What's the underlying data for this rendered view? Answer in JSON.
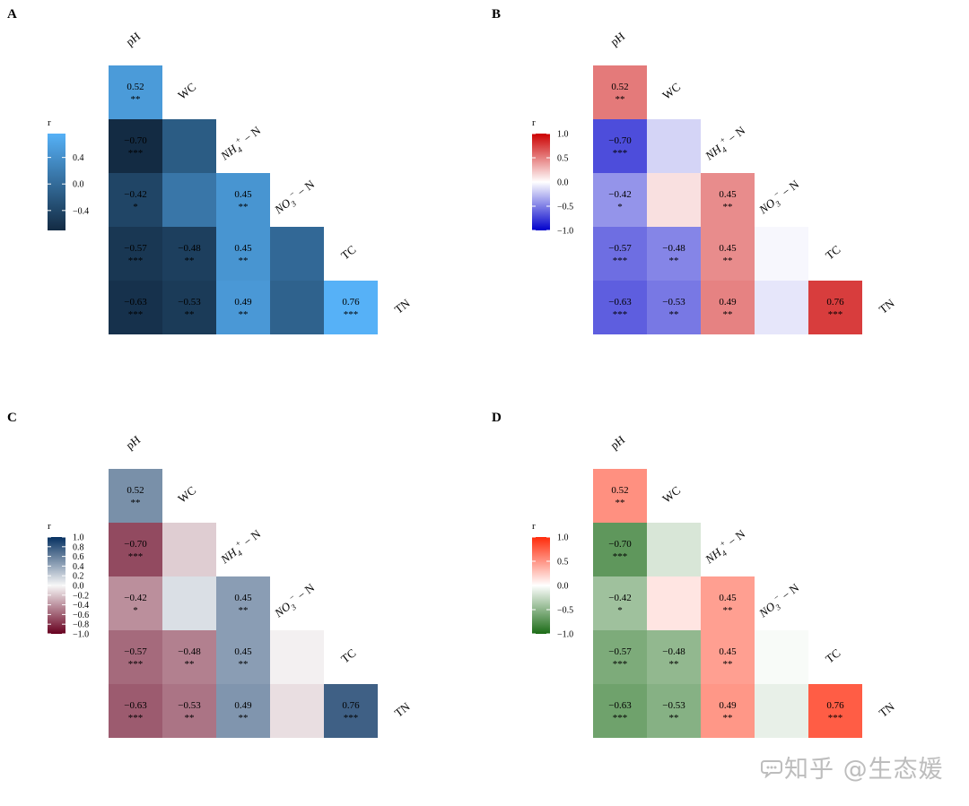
{
  "chart_data": [
    {
      "type": "heatmap",
      "panel": "A",
      "variables": [
        "pH",
        "WC",
        "NH4+-N",
        "NO3−-N",
        "TC",
        "TN"
      ],
      "cells": [
        {
          "row": "WC",
          "col": "pH",
          "r": 0.52,
          "sig": "**"
        },
        {
          "row": "NH4+-N",
          "col": "pH",
          "r": -0.7,
          "sig": "***"
        },
        {
          "row": "NH4+-N",
          "col": "WC",
          "r": -0.17,
          "sig": ""
        },
        {
          "row": "NO3−-N",
          "col": "pH",
          "r": -0.42,
          "sig": "*"
        },
        {
          "row": "NO3−-N",
          "col": "WC",
          "r": 0.12,
          "sig": ""
        },
        {
          "row": "NO3−-N",
          "col": "NH4+-N",
          "r": 0.45,
          "sig": "**"
        },
        {
          "row": "TC",
          "col": "pH",
          "r": -0.57,
          "sig": "***"
        },
        {
          "row": "TC",
          "col": "WC",
          "r": -0.48,
          "sig": "**"
        },
        {
          "row": "TC",
          "col": "NH4+-N",
          "r": 0.45,
          "sig": "**"
        },
        {
          "row": "TC",
          "col": "NO3−-N",
          "r": -0.03,
          "sig": ""
        },
        {
          "row": "TN",
          "col": "pH",
          "r": -0.63,
          "sig": "***"
        },
        {
          "row": "TN",
          "col": "WC",
          "r": -0.53,
          "sig": "**"
        },
        {
          "row": "TN",
          "col": "NH4+-N",
          "r": 0.49,
          "sig": "**"
        },
        {
          "row": "TN",
          "col": "NO3−-N",
          "r": -0.1,
          "sig": ""
        },
        {
          "row": "TN",
          "col": "TC",
          "r": 0.76,
          "sig": "***"
        }
      ],
      "legend": {
        "title": "r",
        "ticks": [
          0.4,
          0.0,
          -0.4
        ],
        "range": [
          -0.7,
          0.76
        ]
      },
      "colors": {
        "low": "#132b43",
        "high": "#56b1f7"
      }
    },
    {
      "type": "heatmap",
      "panel": "B",
      "variables": [
        "pH",
        "WC",
        "NH4+-N",
        "NO3−-N",
        "TC",
        "TN"
      ],
      "cells": [
        {
          "row": "WC",
          "col": "pH",
          "r": 0.52,
          "sig": "**"
        },
        {
          "row": "NH4+-N",
          "col": "pH",
          "r": -0.7,
          "sig": "***"
        },
        {
          "row": "NH4+-N",
          "col": "WC",
          "r": -0.17,
          "sig": ""
        },
        {
          "row": "NO3−-N",
          "col": "pH",
          "r": -0.42,
          "sig": "*"
        },
        {
          "row": "NO3−-N",
          "col": "WC",
          "r": 0.12,
          "sig": ""
        },
        {
          "row": "NO3−-N",
          "col": "NH4+-N",
          "r": 0.45,
          "sig": "**"
        },
        {
          "row": "TC",
          "col": "pH",
          "r": -0.57,
          "sig": "***"
        },
        {
          "row": "TC",
          "col": "WC",
          "r": -0.48,
          "sig": "**"
        },
        {
          "row": "TC",
          "col": "NH4+-N",
          "r": 0.45,
          "sig": "**"
        },
        {
          "row": "TC",
          "col": "NO3−-N",
          "r": -0.03,
          "sig": ""
        },
        {
          "row": "TN",
          "col": "pH",
          "r": -0.63,
          "sig": "***"
        },
        {
          "row": "TN",
          "col": "WC",
          "r": -0.53,
          "sig": "**"
        },
        {
          "row": "TN",
          "col": "NH4+-N",
          "r": 0.49,
          "sig": "**"
        },
        {
          "row": "TN",
          "col": "NO3−-N",
          "r": -0.1,
          "sig": ""
        },
        {
          "row": "TN",
          "col": "TC",
          "r": 0.76,
          "sig": "***"
        }
      ],
      "legend": {
        "title": "r",
        "ticks": [
          1.0,
          0.5,
          0.0,
          -0.5,
          -1.0
        ],
        "range": [
          -1,
          1
        ]
      },
      "colors": {
        "low": "#0000cc",
        "mid": "#ffffff",
        "high": "#cc0000"
      }
    },
    {
      "type": "heatmap",
      "panel": "C",
      "variables": [
        "pH",
        "WC",
        "NH4+-N",
        "NO3−-N",
        "TC",
        "TN"
      ],
      "cells": [
        {
          "row": "WC",
          "col": "pH",
          "r": 0.52,
          "sig": "**"
        },
        {
          "row": "NH4+-N",
          "col": "pH",
          "r": -0.7,
          "sig": "***"
        },
        {
          "row": "NH4+-N",
          "col": "WC",
          "r": -0.17,
          "sig": ""
        },
        {
          "row": "NO3−-N",
          "col": "pH",
          "r": -0.42,
          "sig": "*"
        },
        {
          "row": "NO3−-N",
          "col": "WC",
          "r": 0.12,
          "sig": ""
        },
        {
          "row": "NO3−-N",
          "col": "NH4+-N",
          "r": 0.45,
          "sig": "**"
        },
        {
          "row": "TC",
          "col": "pH",
          "r": -0.57,
          "sig": "***"
        },
        {
          "row": "TC",
          "col": "WC",
          "r": -0.48,
          "sig": "**"
        },
        {
          "row": "TC",
          "col": "NH4+-N",
          "r": 0.45,
          "sig": "**"
        },
        {
          "row": "TC",
          "col": "NO3−-N",
          "r": -0.03,
          "sig": ""
        },
        {
          "row": "TN",
          "col": "pH",
          "r": -0.63,
          "sig": "***"
        },
        {
          "row": "TN",
          "col": "WC",
          "r": -0.53,
          "sig": "**"
        },
        {
          "row": "TN",
          "col": "NH4+-N",
          "r": 0.49,
          "sig": "**"
        },
        {
          "row": "TN",
          "col": "NO3−-N",
          "r": -0.1,
          "sig": ""
        },
        {
          "row": "TN",
          "col": "TC",
          "r": 0.76,
          "sig": "***"
        }
      ],
      "legend": {
        "title": "r",
        "ticks": [
          1.0,
          0.8,
          0.6,
          0.4,
          0.2,
          0.0,
          -0.2,
          -0.4,
          -0.6,
          -0.8,
          -1.0
        ],
        "range": [
          -1,
          1
        ]
      },
      "colors": {
        "low": "#67001f",
        "mid": "#f7f7f7",
        "high": "#053061"
      }
    },
    {
      "type": "heatmap",
      "panel": "D",
      "variables": [
        "pH",
        "WC",
        "NH4+-N",
        "NO3−-N",
        "TC",
        "TN"
      ],
      "cells": [
        {
          "row": "WC",
          "col": "pH",
          "r": 0.52,
          "sig": "**"
        },
        {
          "row": "NH4+-N",
          "col": "pH",
          "r": -0.7,
          "sig": "***"
        },
        {
          "row": "NH4+-N",
          "col": "WC",
          "r": -0.17,
          "sig": ""
        },
        {
          "row": "NO3−-N",
          "col": "pH",
          "r": -0.42,
          "sig": "*"
        },
        {
          "row": "NO3−-N",
          "col": "WC",
          "r": 0.12,
          "sig": ""
        },
        {
          "row": "NO3−-N",
          "col": "NH4+-N",
          "r": 0.45,
          "sig": "**"
        },
        {
          "row": "TC",
          "col": "pH",
          "r": -0.57,
          "sig": "***"
        },
        {
          "row": "TC",
          "col": "WC",
          "r": -0.48,
          "sig": "**"
        },
        {
          "row": "TC",
          "col": "NH4+-N",
          "r": 0.45,
          "sig": "**"
        },
        {
          "row": "TC",
          "col": "NO3−-N",
          "r": -0.03,
          "sig": ""
        },
        {
          "row": "TN",
          "col": "pH",
          "r": -0.63,
          "sig": "***"
        },
        {
          "row": "TN",
          "col": "WC",
          "r": -0.53,
          "sig": "**"
        },
        {
          "row": "TN",
          "col": "NH4+-N",
          "r": 0.49,
          "sig": "**"
        },
        {
          "row": "TN",
          "col": "NO3−-N",
          "r": -0.1,
          "sig": ""
        },
        {
          "row": "TN",
          "col": "TC",
          "r": 0.76,
          "sig": "***"
        }
      ],
      "legend": {
        "title": "r",
        "ticks": [
          1.0,
          0.5,
          0.0,
          -0.5,
          -1.0
        ],
        "range": [
          -1,
          1
        ]
      },
      "colors": {
        "low": "#1b6b16",
        "mid": "#ffffff",
        "high": "#ff2a0a"
      }
    }
  ],
  "watermark": {
    "text": "知乎 @生态媛",
    "icon": "zhihu-bubble-icon"
  }
}
